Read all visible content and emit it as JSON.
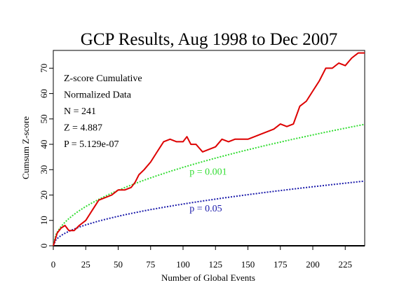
{
  "chart_data": {
    "type": "line",
    "title": "GCP Results, Aug 1998 to Dec 2007",
    "xlabel": "Number of Global Events",
    "ylabel": "Cumsum Z-score",
    "xlim": [
      0,
      240
    ],
    "ylim": [
      0,
      77
    ],
    "x_ticks": [
      "0",
      "25",
      "50",
      "75",
      "100",
      "125",
      "150",
      "175",
      "200",
      "225"
    ],
    "y_ticks": [
      "0",
      "10",
      "20",
      "30",
      "40",
      "50",
      "60",
      "70"
    ],
    "stats": [
      "Z-score Cumulative",
      "Normalized Data",
      "N = 241",
      "Z = 4.887",
      "P = 5.129e-07"
    ],
    "reference_curves": [
      {
        "label": "p = 0.001",
        "color": "#33dd33",
        "coef": 3.09,
        "label_x": 105,
        "label_y": 28
      },
      {
        "label": "p = 0.05",
        "color": "#1a1aaa",
        "coef": 1.645,
        "label_x": 105,
        "label_y": 13.5
      }
    ],
    "series": [
      {
        "color": "#dd0000",
        "x": [
          0,
          3,
          6,
          9,
          12,
          16,
          20,
          25,
          30,
          35,
          40,
          45,
          50,
          55,
          60,
          63,
          66,
          70,
          75,
          80,
          85,
          90,
          95,
          100,
          103,
          106,
          110,
          115,
          120,
          125,
          130,
          135,
          140,
          145,
          150,
          155,
          160,
          165,
          170,
          175,
          180,
          185,
          190,
          195,
          200,
          205,
          210,
          215,
          220,
          225,
          230,
          235,
          240
        ],
        "y": [
          0,
          5,
          7,
          8,
          6,
          6,
          8,
          10,
          14,
          18,
          19,
          20,
          22,
          22,
          23,
          25,
          28,
          30,
          33,
          37,
          41,
          42,
          41,
          41,
          43,
          40,
          40,
          37,
          38,
          39,
          42,
          41,
          42,
          42,
          42,
          43,
          44,
          45,
          46,
          48,
          47,
          48,
          55,
          57,
          61,
          65,
          70,
          70,
          72,
          71,
          74,
          76,
          76
        ]
      }
    ],
    "baseline": {
      "y": 0,
      "color": "#000000"
    }
  }
}
